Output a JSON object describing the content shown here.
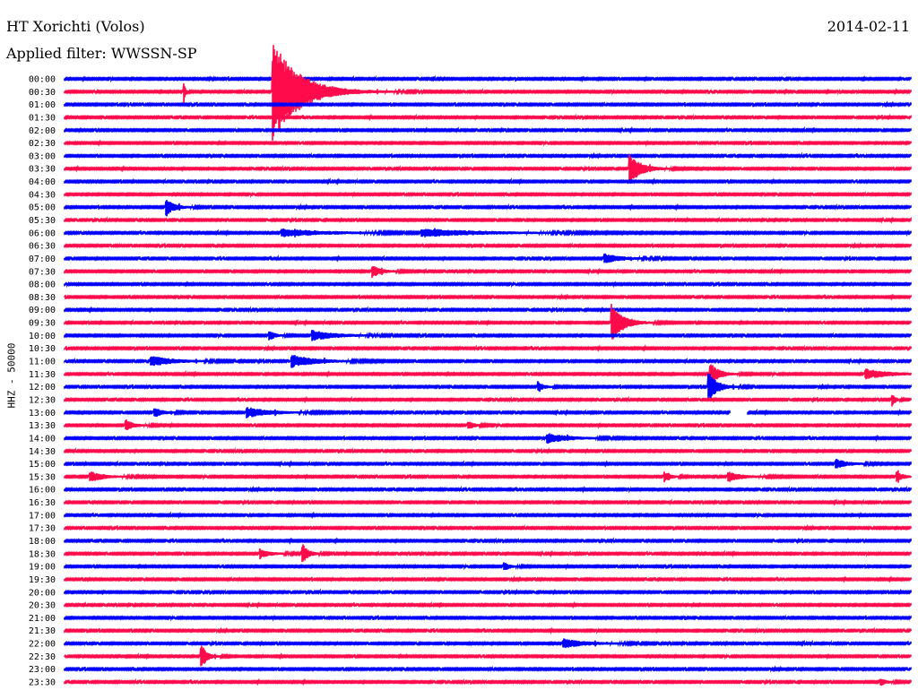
{
  "header": {
    "station": "HT Xorichti (Volos)",
    "date": "2014-02-11",
    "filter": "Applied filter: WWSSN-SP"
  },
  "chart_data": {
    "type": "line",
    "title": "HT Xorichti (Volos)",
    "subtitle": "Applied filter: WWSSN-SP",
    "ylabel": "HHZ - 50000",
    "xlabel": "",
    "row_duration_minutes": 30,
    "row_labels": [
      "00:00",
      "00:30",
      "01:00",
      "01:30",
      "02:00",
      "02:30",
      "03:00",
      "03:30",
      "04:00",
      "04:30",
      "05:00",
      "05:30",
      "06:00",
      "06:30",
      "07:00",
      "07:30",
      "08:00",
      "08:30",
      "09:00",
      "09:30",
      "10:00",
      "10:30",
      "11:00",
      "11:30",
      "12:00",
      "12:30",
      "13:00",
      "13:30",
      "14:00",
      "14:30",
      "15:00",
      "15:30",
      "16:00",
      "16:30",
      "17:00",
      "17:30",
      "18:00",
      "18:30",
      "19:00",
      "19:30",
      "20:00",
      "20:30",
      "21:00",
      "21:30",
      "22:00",
      "22:30",
      "23:00",
      "23:30"
    ],
    "colors": [
      "#0000ff",
      "#ff0a4a"
    ],
    "events": [
      {
        "row": "00:30",
        "minute": 7.4,
        "amp": 3.9,
        "decay": 0.9
      },
      {
        "row": "00:30",
        "minute": 4.23,
        "amp": 1.0,
        "decay": 0.05
      },
      {
        "row": "03:30",
        "minute": 20.05,
        "amp": 1.1,
        "decay": 0.4
      },
      {
        "row": "05:00",
        "minute": 3.62,
        "amp": 0.6,
        "decay": 0.3
      },
      {
        "row": "06:00",
        "minute": 7.72,
        "amp": 0.3,
        "decay": 1.5
      },
      {
        "row": "06:00",
        "minute": 12.65,
        "amp": 0.3,
        "decay": 2.0
      },
      {
        "row": "07:00",
        "minute": 19.16,
        "amp": 0.35,
        "decay": 0.6
      },
      {
        "row": "07:30",
        "minute": 10.9,
        "amp": 0.5,
        "decay": 0.3
      },
      {
        "row": "09:30",
        "minute": 19.39,
        "amp": 1.5,
        "decay": 0.4
      },
      {
        "row": "10:00",
        "minute": 7.25,
        "amp": 0.4,
        "decay": 0.2
      },
      {
        "row": "10:00",
        "minute": 8.77,
        "amp": 0.4,
        "decay": 0.8
      },
      {
        "row": "11:00",
        "minute": 3.05,
        "amp": 0.4,
        "decay": 0.8
      },
      {
        "row": "11:00",
        "minute": 8.04,
        "amp": 0.5,
        "decay": 0.8
      },
      {
        "row": "11:30",
        "minute": 22.88,
        "amp": 0.9,
        "decay": 0.3
      },
      {
        "row": "11:30",
        "minute": 28.38,
        "amp": 0.4,
        "decay": 0.8
      },
      {
        "row": "12:00",
        "minute": 22.82,
        "amp": 1.2,
        "decay": 0.3
      },
      {
        "row": "12:00",
        "minute": 16.78,
        "amp": 0.4,
        "decay": 0.2
      },
      {
        "row": "12:30",
        "minute": 29.36,
        "amp": 0.5,
        "decay": 0.1
      },
      {
        "row": "13:00",
        "minute": 6.45,
        "amp": 0.4,
        "decay": 0.8
      },
      {
        "row": "13:00",
        "minute": 3.2,
        "amp": 0.35,
        "decay": 0.3
      },
      {
        "row": "13:30",
        "minute": 2.16,
        "amp": 0.4,
        "decay": 0.3
      },
      {
        "row": "13:30",
        "minute": 14.3,
        "amp": 0.35,
        "decay": 0.2
      },
      {
        "row": "14:00",
        "minute": 17.1,
        "amp": 0.4,
        "decay": 0.7
      },
      {
        "row": "15:00",
        "minute": 27.33,
        "amp": 0.4,
        "decay": 0.4
      },
      {
        "row": "15:30",
        "minute": 0.89,
        "amp": 0.4,
        "decay": 0.5
      },
      {
        "row": "15:30",
        "minute": 29.49,
        "amp": 0.5,
        "decay": 0.2
      },
      {
        "row": "15:30",
        "minute": 21.26,
        "amp": 0.4,
        "decay": 0.2
      },
      {
        "row": "15:30",
        "minute": 23.52,
        "amp": 0.35,
        "decay": 0.5
      },
      {
        "row": "18:30",
        "minute": 8.42,
        "amp": 0.8,
        "decay": 0.2
      },
      {
        "row": "18:30",
        "minute": 6.93,
        "amp": 0.3,
        "decay": 0.4
      },
      {
        "row": "19:00",
        "minute": 15.6,
        "amp": 0.3,
        "decay": 0.2
      },
      {
        "row": "22:00",
        "minute": 17.67,
        "amp": 0.35,
        "decay": 0.8
      },
      {
        "row": "22:30",
        "minute": 4.86,
        "amp": 0.9,
        "decay": 0.2
      },
      {
        "row": "23:30",
        "minute": 28.92,
        "amp": 0.3,
        "decay": 0.2
      }
    ],
    "gaps": [
      {
        "row": "13:00",
        "start_minute": 23.6,
        "end_minute": 24.2
      }
    ]
  }
}
